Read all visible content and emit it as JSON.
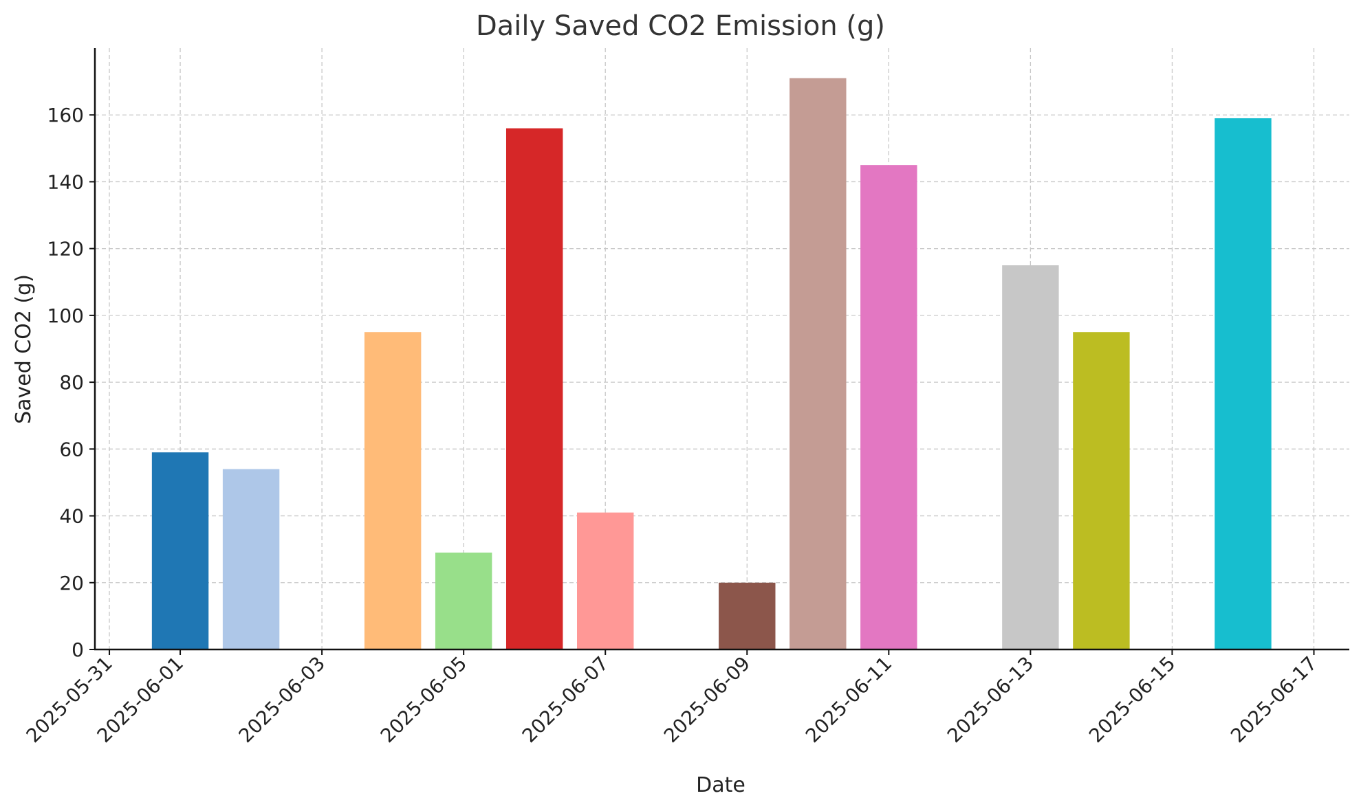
{
  "chart_data": {
    "type": "bar",
    "title": "Daily Saved CO2 Emission (g)",
    "xlabel": "Date",
    "ylabel": "Saved CO2 (g)",
    "x_axis": "date",
    "xlim": [
      "2025-05-30T19:06",
      "2025-06-17T12:00"
    ],
    "ylim": [
      0,
      180
    ],
    "grid": true,
    "x_ticks": [
      "2025-05-31",
      "2025-06-01",
      "2025-06-03",
      "2025-06-05",
      "2025-06-07",
      "2025-06-09",
      "2025-06-11",
      "2025-06-13",
      "2025-06-15",
      "2025-06-17"
    ],
    "y_ticks": [
      0,
      20,
      40,
      60,
      80,
      100,
      120,
      140,
      160
    ],
    "categories": [
      "2025-06-01",
      "2025-06-02",
      "2025-06-04",
      "2025-06-05",
      "2025-06-06",
      "2025-06-07",
      "2025-06-09",
      "2025-06-10",
      "2025-06-11",
      "2025-06-13",
      "2025-06-14",
      "2025-06-16"
    ],
    "values": [
      59,
      54,
      95,
      29,
      156,
      41,
      20,
      171,
      145,
      115,
      95,
      159
    ],
    "colors": [
      "#1f77b4",
      "#aec7e8",
      "#ffbb78",
      "#98df8a",
      "#d62728",
      "#ff9896",
      "#8c564b",
      "#c49c94",
      "#e377c2",
      "#c7c7c7",
      "#bcbd22",
      "#17becf"
    ]
  }
}
